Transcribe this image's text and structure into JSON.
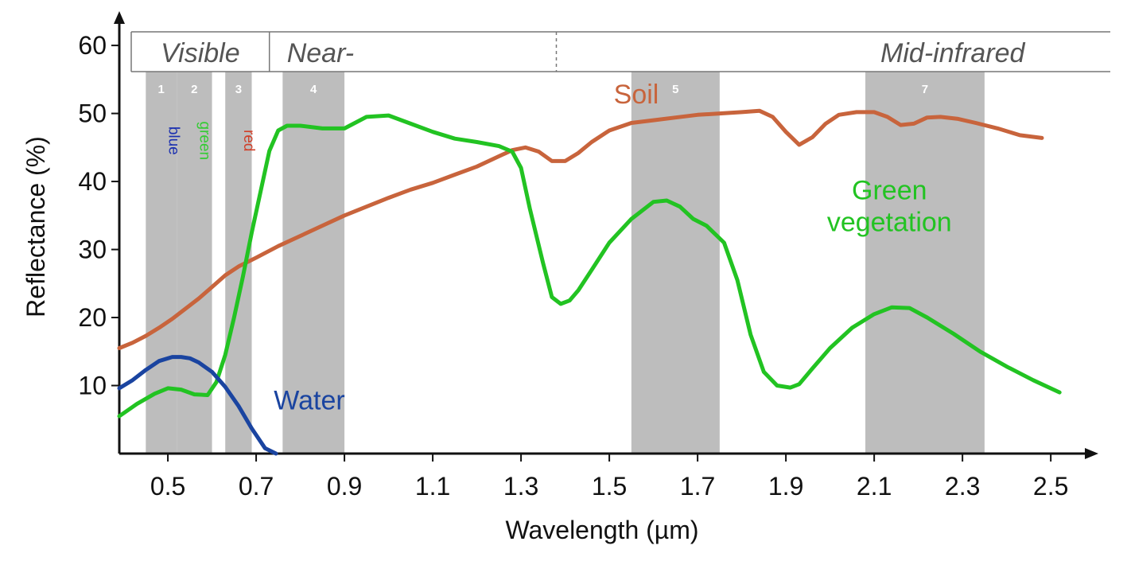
{
  "chart_data": {
    "type": "line",
    "xlabel": "Wavelength (µm)",
    "ylabel": "Reflectance (%)",
    "xlim": [
      0.39,
      2.57
    ],
    "ylim": [
      0,
      62
    ],
    "x_ticks": [
      "0.5",
      "0.7",
      "0.9",
      "1.1",
      "1.3",
      "1.5",
      "1.7",
      "1.9",
      "2.1",
      "2.3",
      "2.5"
    ],
    "y_ticks": [
      "10",
      "20",
      "30",
      "40",
      "50",
      "60"
    ],
    "regions": [
      {
        "label": "Visible",
        "from": 0.39,
        "to": 0.73
      },
      {
        "label": "Near-",
        "from": 0.73,
        "to": 1.38
      },
      {
        "label": "Mid-infrared",
        "from": 1.38,
        "to": 2.57
      }
    ],
    "bands": [
      {
        "label": "1",
        "from": 0.45,
        "to": 0.52
      },
      {
        "label": "2",
        "from": 0.52,
        "to": 0.6
      },
      {
        "label": "3",
        "from": 0.63,
        "to": 0.69
      },
      {
        "label": "4",
        "from": 0.76,
        "to": 0.9
      },
      {
        "label": "5",
        "from": 1.55,
        "to": 1.75
      },
      {
        "label": "7",
        "from": 2.08,
        "to": 2.35
      }
    ],
    "color_labels": [
      {
        "text": "blue",
        "x": 0.49,
        "color": "#1a2fb0"
      },
      {
        "text": "green",
        "x": 0.56,
        "color": "#33cc33"
      },
      {
        "text": "red",
        "x": 0.66,
        "color": "#d0402a"
      }
    ],
    "series": [
      {
        "name": "Soil",
        "color": "#c8643c",
        "label_at": [
          1.51,
          51.5
        ],
        "x": [
          0.39,
          0.42,
          0.45,
          0.48,
          0.51,
          0.54,
          0.57,
          0.6,
          0.63,
          0.66,
          0.7,
          0.75,
          0.8,
          0.85,
          0.9,
          0.95,
          1.0,
          1.05,
          1.1,
          1.15,
          1.2,
          1.25,
          1.28,
          1.31,
          1.34,
          1.37,
          1.4,
          1.43,
          1.46,
          1.5,
          1.55,
          1.6,
          1.65,
          1.7,
          1.75,
          1.8,
          1.84,
          1.87,
          1.9,
          1.93,
          1.96,
          1.99,
          2.02,
          2.06,
          2.1,
          2.13,
          2.16,
          2.19,
          2.22,
          2.25,
          2.29,
          2.33,
          2.38,
          2.43,
          2.48
        ],
        "y": [
          15.5,
          16.3,
          17.3,
          18.5,
          19.8,
          21.3,
          22.8,
          24.5,
          26.2,
          27.5,
          28.8,
          30.5,
          32.0,
          33.5,
          35.0,
          36.3,
          37.6,
          38.8,
          39.8,
          41.0,
          42.2,
          43.7,
          44.6,
          45.0,
          44.4,
          43.0,
          43.0,
          44.2,
          45.8,
          47.5,
          48.6,
          49.0,
          49.4,
          49.8,
          50.0,
          50.2,
          50.4,
          49.5,
          47.3,
          45.4,
          46.5,
          48.5,
          49.8,
          50.2,
          50.2,
          49.5,
          48.3,
          48.5,
          49.4,
          49.5,
          49.2,
          48.6,
          47.8,
          46.8,
          46.4
        ]
      },
      {
        "name": "Green vegetation",
        "color": "#22c322",
        "label_at": [
          2.03,
          37.4
        ],
        "x": [
          0.39,
          0.43,
          0.47,
          0.5,
          0.53,
          0.56,
          0.59,
          0.61,
          0.63,
          0.65,
          0.67,
          0.69,
          0.71,
          0.73,
          0.75,
          0.77,
          0.8,
          0.85,
          0.9,
          0.95,
          1.0,
          1.05,
          1.1,
          1.15,
          1.2,
          1.25,
          1.28,
          1.3,
          1.32,
          1.35,
          1.37,
          1.39,
          1.41,
          1.43,
          1.46,
          1.5,
          1.55,
          1.6,
          1.63,
          1.66,
          1.69,
          1.72,
          1.76,
          1.79,
          1.82,
          1.85,
          1.88,
          1.91,
          1.93,
          1.96,
          2.0,
          2.05,
          2.1,
          2.14,
          2.18,
          2.22,
          2.28,
          2.34,
          2.4,
          2.46,
          2.52
        ],
        "y": [
          5.5,
          7.3,
          8.8,
          9.6,
          9.4,
          8.7,
          8.6,
          10.5,
          14.5,
          20.0,
          26.0,
          32.5,
          38.5,
          44.5,
          47.5,
          48.2,
          48.2,
          47.8,
          47.8,
          49.5,
          49.7,
          48.5,
          47.3,
          46.3,
          45.8,
          45.2,
          44.4,
          42.0,
          36.0,
          28.0,
          23.0,
          22.0,
          22.5,
          24.0,
          27.0,
          31.0,
          34.5,
          37.0,
          37.2,
          36.3,
          34.5,
          33.5,
          31.0,
          25.5,
          17.5,
          12.0,
          10.0,
          9.7,
          10.2,
          12.5,
          15.5,
          18.5,
          20.5,
          21.5,
          21.4,
          20.0,
          17.6,
          15.0,
          12.8,
          10.8,
          9.0
        ]
      },
      {
        "name": "Water",
        "color": "#1a44a0",
        "label_at": [
          0.74,
          6.5
        ],
        "x": [
          0.39,
          0.42,
          0.45,
          0.48,
          0.51,
          0.53,
          0.55,
          0.57,
          0.6,
          0.63,
          0.66,
          0.69,
          0.72,
          0.745
        ],
        "y": [
          9.6,
          10.8,
          12.3,
          13.6,
          14.2,
          14.2,
          14.0,
          13.4,
          12.0,
          9.8,
          7.0,
          3.7,
          0.8,
          0.0
        ]
      }
    ]
  }
}
